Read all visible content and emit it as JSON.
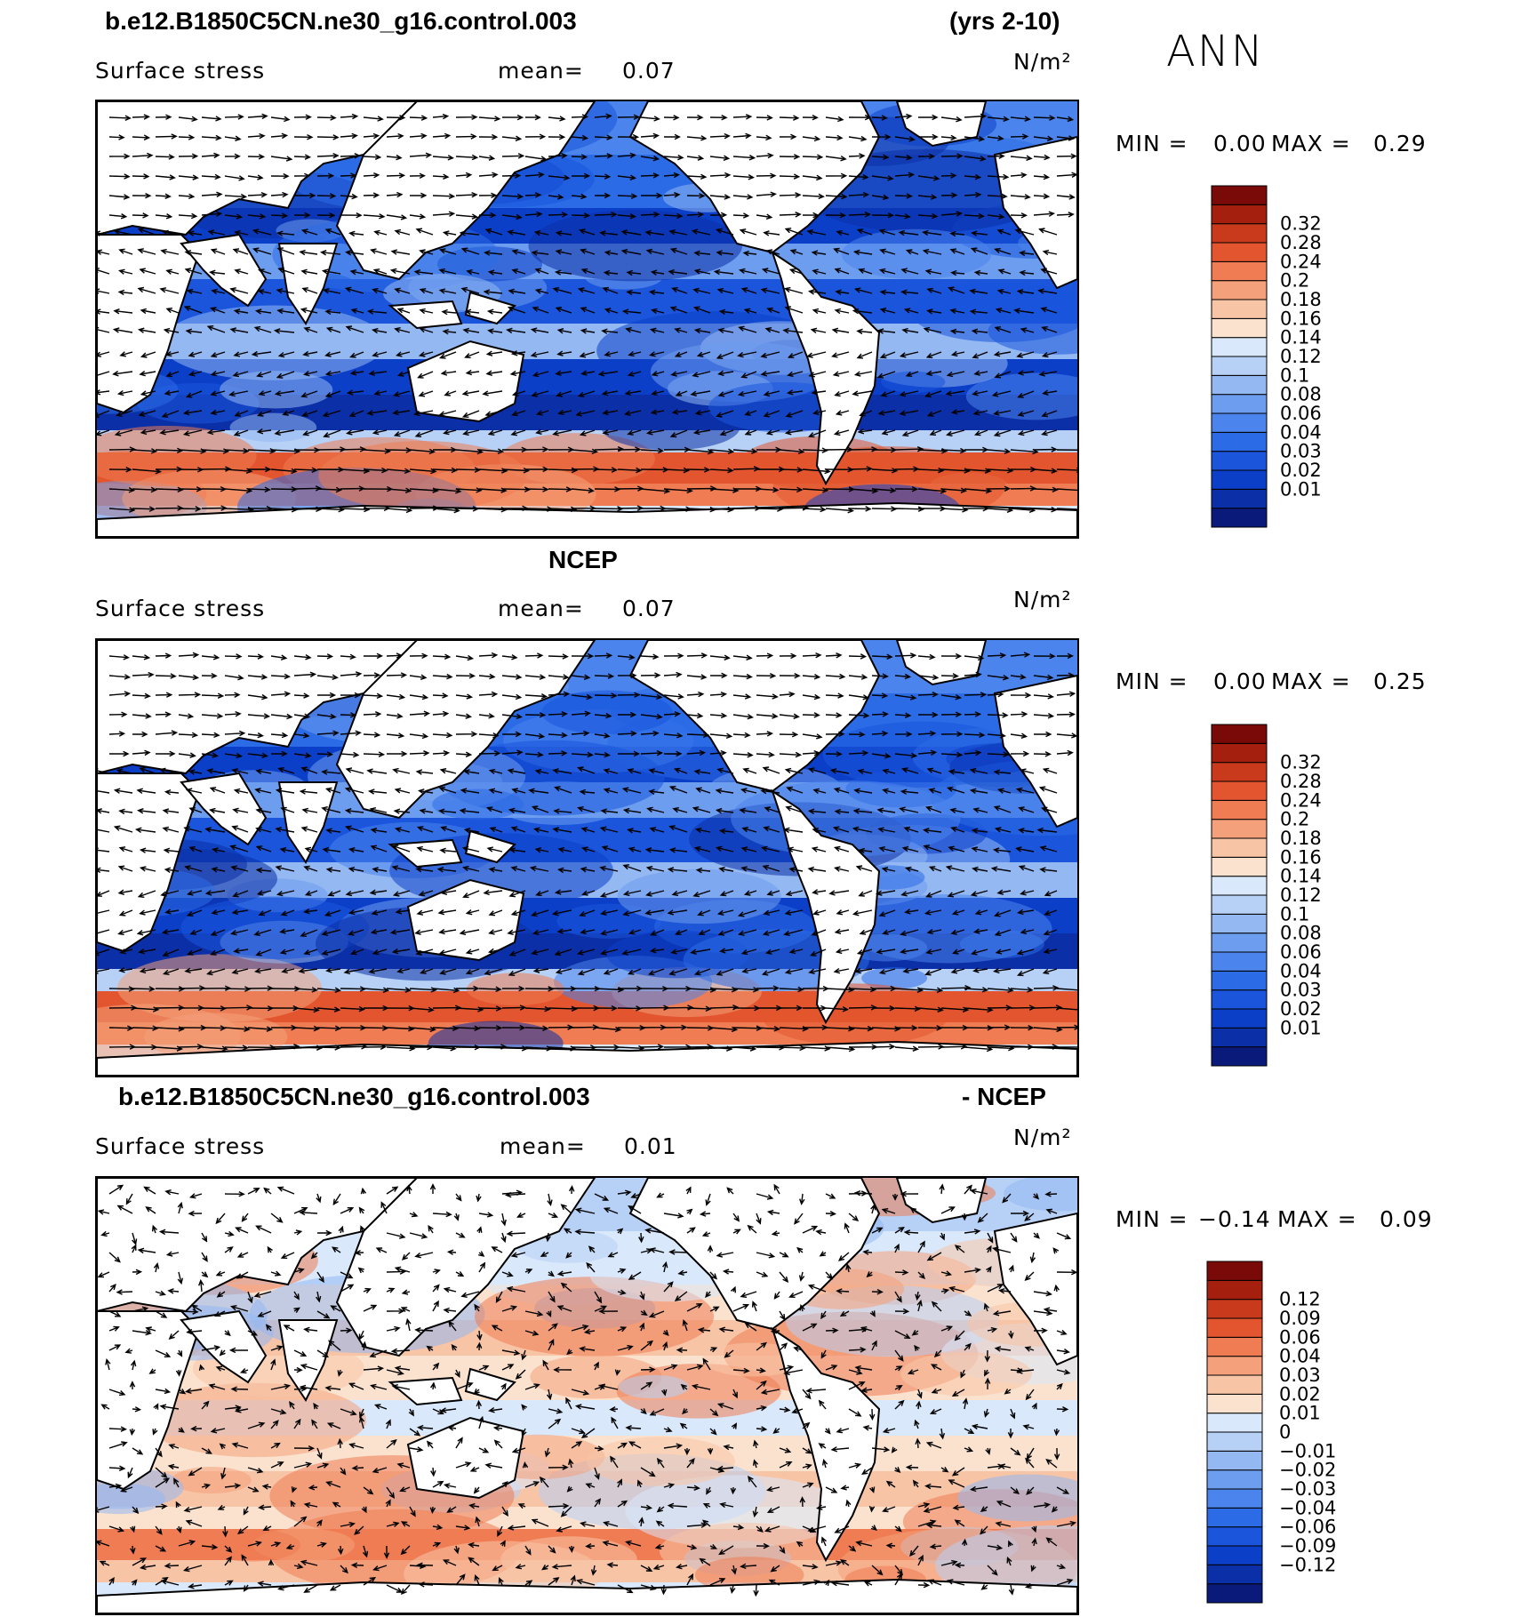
{
  "header": {
    "case_name": "b.e12.B1850C5CN.ne30_g16.control.003",
    "years": "(yrs 2-10)",
    "season": "ANN"
  },
  "ncep_title": "NCEP",
  "diff_title": {
    "case": "b.e12.B1850C5CN.ne30_g16.control.003",
    "minus": "- NCEP"
  },
  "panels": [
    {
      "variable": "Surface stress",
      "mean_label": "mean=",
      "mean_value": "0.07",
      "units": "N/m²",
      "min_label": "MIN =",
      "min_value": "0.00",
      "max_label": "MAX =",
      "max_value": "0.29"
    },
    {
      "variable": "Surface stress",
      "mean_label": "mean=",
      "mean_value": "0.07",
      "units": "N/m²",
      "min_label": "MIN =",
      "min_value": "0.00",
      "max_label": "MAX =",
      "max_value": "0.25"
    },
    {
      "variable": "Surface stress",
      "mean_label": "mean=",
      "mean_value": "0.01",
      "units": "N/m²",
      "min_label": "MIN =",
      "min_value": "−0.14",
      "max_label": "MAX =",
      "max_value": "0.09"
    }
  ],
  "colors": {
    "land": "#ffffff",
    "abs_scale": [
      "#0a1a7a",
      "#0b2fa6",
      "#0c3fc8",
      "#1a55dc",
      "#2c6be6",
      "#4a84ec",
      "#6d9def",
      "#93b8f2",
      "#b7d0f6",
      "#d9e8fb",
      "#fbe2cf",
      "#f8c4a6",
      "#f4a07a",
      "#ef7c52",
      "#e2552e",
      "#c83a1b",
      "#a51f0f",
      "#7a0a08"
    ],
    "diff_scale": [
      "#0a1a7a",
      "#0b2fa6",
      "#0c3fc8",
      "#1a55dc",
      "#2c6be6",
      "#4a84ec",
      "#6d9def",
      "#93b8f2",
      "#b7d0f6",
      "#d9e8fb",
      "#fbe2cf",
      "#f8c4a6",
      "#f4a07a",
      "#ef7c52",
      "#e2552e",
      "#c83a1b",
      "#a51f0f",
      "#7a0a08"
    ]
  },
  "chart_data": [
    {
      "type": "heatmap",
      "title": "b.e12.B1850C5CN.ne30_g16.control.003 (yrs 2-10)",
      "variable": "Surface stress",
      "units": "N/m²",
      "season": "ANN",
      "mean": 0.07,
      "min": 0.0,
      "max": 0.29,
      "colorbar_levels": [
        0.01,
        0.02,
        0.03,
        0.04,
        0.06,
        0.08,
        0.1,
        0.12,
        0.14,
        0.16,
        0.18,
        0.2,
        0.24,
        0.28,
        0.32
      ],
      "colorbar_labels": [
        "0.01",
        "0.02",
        "0.03",
        "0.04",
        "0.06",
        "0.08",
        "0.1",
        "0.12",
        "0.14",
        "0.16",
        "0.18",
        "0.2",
        "0.24",
        "0.28",
        "0.32"
      ],
      "overlay": "wind stress vectors"
    },
    {
      "type": "heatmap",
      "title": "NCEP",
      "variable": "Surface stress",
      "units": "N/m²",
      "mean": 0.07,
      "min": 0.0,
      "max": 0.25,
      "colorbar_levels": [
        0.01,
        0.02,
        0.03,
        0.04,
        0.06,
        0.08,
        0.1,
        0.12,
        0.14,
        0.16,
        0.18,
        0.2,
        0.24,
        0.28,
        0.32
      ],
      "colorbar_labels": [
        "0.01",
        "0.02",
        "0.03",
        "0.04",
        "0.06",
        "0.08",
        "0.1",
        "0.12",
        "0.14",
        "0.16",
        "0.18",
        "0.2",
        "0.24",
        "0.28",
        "0.32"
      ],
      "overlay": "wind stress vectors"
    },
    {
      "type": "heatmap",
      "title": "b.e12.B1850C5CN.ne30_g16.control.003 - NCEP",
      "variable": "Surface stress",
      "units": "N/m²",
      "mean": 0.01,
      "min": -0.14,
      "max": 0.09,
      "colorbar_levels": [
        -0.12,
        -0.09,
        -0.06,
        -0.04,
        -0.03,
        -0.02,
        -0.01,
        0,
        0.01,
        0.02,
        0.03,
        0.04,
        0.06,
        0.09,
        0.12
      ],
      "colorbar_labels": [
        "−0.12",
        "−0.09",
        "−0.06",
        "−0.04",
        "−0.03",
        "−0.02",
        "−0.01",
        "0",
        "0.01",
        "0.02",
        "0.03",
        "0.04",
        "0.06",
        "0.09",
        "0.12"
      ],
      "overlay": "wind stress difference vectors"
    }
  ]
}
